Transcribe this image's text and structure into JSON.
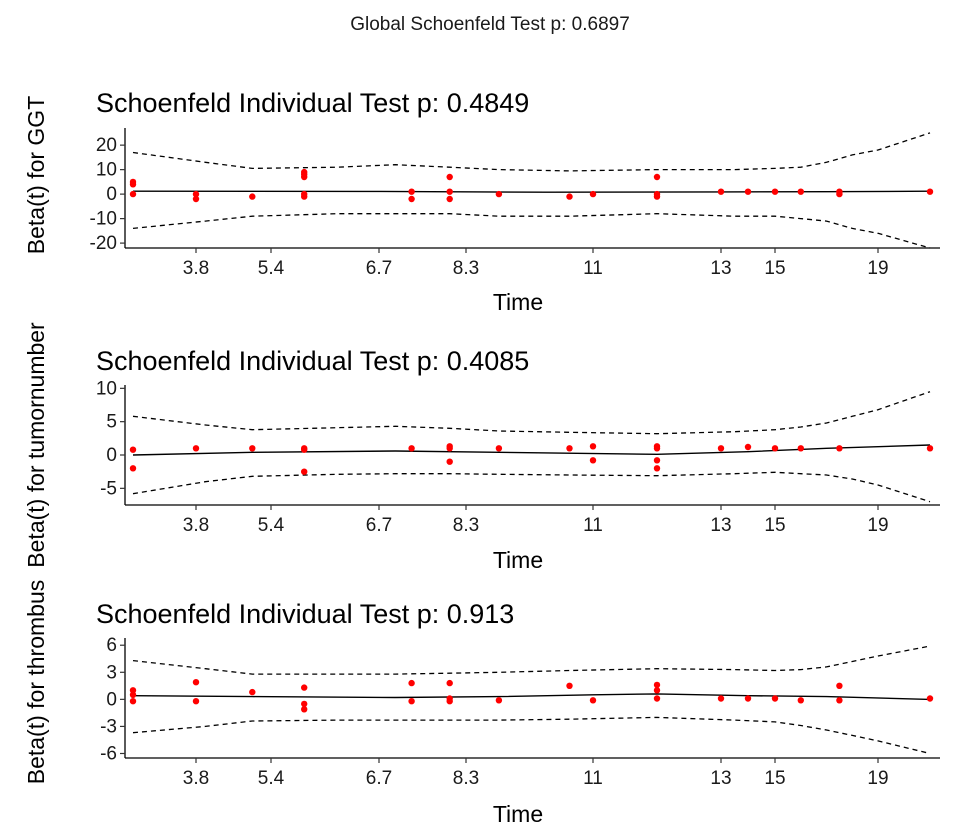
{
  "figure": {
    "global_title": "Global Schoenfeld Test p: 0.6897"
  },
  "style": {
    "point_color": "#ff0000",
    "line_color": "#000000",
    "band_color": "#000000"
  },
  "chart_data": [
    {
      "type": "scatter",
      "title": "Schoenfeld Individual Test p: 0.4849",
      "xlabel": "Time",
      "ylabel": "Beta(t) for GGT",
      "x_ticks": [
        "3.8",
        "5.4",
        "6.7",
        "8.3",
        "11",
        "13",
        "15",
        "19"
      ],
      "y_ticks": [
        20,
        10,
        0,
        -10,
        -20
      ],
      "ylim": [
        -22,
        27
      ],
      "grid": false,
      "points": [
        {
          "x": 3.2,
          "y": 5
        },
        {
          "x": 3.2,
          "y": 4
        },
        {
          "x": 3.2,
          "y": 0
        },
        {
          "x": 3.8,
          "y": 0
        },
        {
          "x": 3.8,
          "y": -2
        },
        {
          "x": 5.0,
          "y": -1
        },
        {
          "x": 5.8,
          "y": 9
        },
        {
          "x": 5.8,
          "y": 8
        },
        {
          "x": 5.8,
          "y": 7
        },
        {
          "x": 5.8,
          "y": 0
        },
        {
          "x": 5.8,
          "y": -1
        },
        {
          "x": 7.3,
          "y": 1
        },
        {
          "x": 7.3,
          "y": -2
        },
        {
          "x": 8.0,
          "y": 7
        },
        {
          "x": 8.0,
          "y": 1
        },
        {
          "x": 8.0,
          "y": -2
        },
        {
          "x": 9.0,
          "y": 0
        },
        {
          "x": 10.5,
          "y": -1
        },
        {
          "x": 11.0,
          "y": 0
        },
        {
          "x": 12.0,
          "y": 7
        },
        {
          "x": 12.0,
          "y": 0
        },
        {
          "x": 12.0,
          "y": -1
        },
        {
          "x": 13.0,
          "y": 1
        },
        {
          "x": 14.0,
          "y": 1
        },
        {
          "x": 15.0,
          "y": 1
        },
        {
          "x": 16.0,
          "y": 1
        },
        {
          "x": 17.5,
          "y": 1
        },
        {
          "x": 17.5,
          "y": 0
        },
        {
          "x": 21.0,
          "y": 1
        }
      ],
      "fit": [
        {
          "x": 3.2,
          "y": 1.2
        },
        {
          "x": 6.5,
          "y": 1.1
        },
        {
          "x": 10.0,
          "y": 0.8
        },
        {
          "x": 13.0,
          "y": 0.9
        },
        {
          "x": 17.0,
          "y": 1.0
        },
        {
          "x": 21.0,
          "y": 1.2
        }
      ],
      "band_upper": [
        {
          "x": 3.2,
          "y": 17
        },
        {
          "x": 4.0,
          "y": 13
        },
        {
          "x": 5.0,
          "y": 10.5
        },
        {
          "x": 6.2,
          "y": 11
        },
        {
          "x": 7.0,
          "y": 12
        },
        {
          "x": 8.0,
          "y": 11
        },
        {
          "x": 9.0,
          "y": 10
        },
        {
          "x": 10.5,
          "y": 9.5
        },
        {
          "x": 12.0,
          "y": 10
        },
        {
          "x": 13.5,
          "y": 10
        },
        {
          "x": 15.0,
          "y": 10.5
        },
        {
          "x": 16.0,
          "y": 11
        },
        {
          "x": 17.0,
          "y": 13
        },
        {
          "x": 18.0,
          "y": 16
        },
        {
          "x": 19.0,
          "y": 18
        },
        {
          "x": 21.0,
          "y": 25
        }
      ],
      "band_lower": [
        {
          "x": 3.2,
          "y": -14
        },
        {
          "x": 4.0,
          "y": -11
        },
        {
          "x": 5.0,
          "y": -9
        },
        {
          "x": 6.2,
          "y": -8
        },
        {
          "x": 7.0,
          "y": -8
        },
        {
          "x": 8.0,
          "y": -8
        },
        {
          "x": 9.0,
          "y": -9
        },
        {
          "x": 10.5,
          "y": -9
        },
        {
          "x": 12.0,
          "y": -8
        },
        {
          "x": 13.5,
          "y": -9
        },
        {
          "x": 15.0,
          "y": -9
        },
        {
          "x": 16.0,
          "y": -10
        },
        {
          "x": 17.0,
          "y": -11
        },
        {
          "x": 18.0,
          "y": -14
        },
        {
          "x": 19.0,
          "y": -16
        },
        {
          "x": 21.0,
          "y": -22
        }
      ]
    },
    {
      "type": "scatter",
      "title": "Schoenfeld Individual Test p: 0.4085",
      "xlabel": "Time",
      "ylabel": "Beta(t) for tumornumber",
      "x_ticks": [
        "3.8",
        "5.4",
        "6.7",
        "8.3",
        "11",
        "13",
        "15",
        "19"
      ],
      "y_ticks": [
        10,
        5,
        0,
        -5
      ],
      "ylim": [
        -7.5,
        10.5
      ],
      "grid": false,
      "points": [
        {
          "x": 3.2,
          "y": 0.8
        },
        {
          "x": 3.2,
          "y": -2
        },
        {
          "x": 3.8,
          "y": 1
        },
        {
          "x": 5.0,
          "y": 1
        },
        {
          "x": 5.8,
          "y": 1
        },
        {
          "x": 5.8,
          "y": 0.8
        },
        {
          "x": 5.8,
          "y": -2.5
        },
        {
          "x": 7.3,
          "y": 1
        },
        {
          "x": 8.0,
          "y": 1.3
        },
        {
          "x": 8.0,
          "y": 1
        },
        {
          "x": 8.0,
          "y": -1
        },
        {
          "x": 9.0,
          "y": 1
        },
        {
          "x": 10.5,
          "y": 1
        },
        {
          "x": 11.0,
          "y": 1.3
        },
        {
          "x": 11.0,
          "y": -0.8
        },
        {
          "x": 12.0,
          "y": 1.3
        },
        {
          "x": 12.0,
          "y": 1
        },
        {
          "x": 12.0,
          "y": -0.8
        },
        {
          "x": 12.0,
          "y": -2
        },
        {
          "x": 13.0,
          "y": 1
        },
        {
          "x": 14.0,
          "y": 1.2
        },
        {
          "x": 15.0,
          "y": 1
        },
        {
          "x": 16.0,
          "y": 1
        },
        {
          "x": 17.5,
          "y": 1
        },
        {
          "x": 21.0,
          "y": 1
        }
      ],
      "fit": [
        {
          "x": 3.2,
          "y": 0.0
        },
        {
          "x": 5.0,
          "y": 0.4
        },
        {
          "x": 7.0,
          "y": 0.6
        },
        {
          "x": 9.0,
          "y": 0.4
        },
        {
          "x": 12.0,
          "y": 0.1
        },
        {
          "x": 14.0,
          "y": 0.5
        },
        {
          "x": 17.0,
          "y": 1.0
        },
        {
          "x": 21.0,
          "y": 1.5
        }
      ],
      "band_upper": [
        {
          "x": 3.2,
          "y": 5.8
        },
        {
          "x": 4.0,
          "y": 4.5
        },
        {
          "x": 5.0,
          "y": 3.8
        },
        {
          "x": 6.2,
          "y": 4.1
        },
        {
          "x": 7.0,
          "y": 4.3
        },
        {
          "x": 8.0,
          "y": 4.0
        },
        {
          "x": 9.0,
          "y": 3.6
        },
        {
          "x": 10.5,
          "y": 3.4
        },
        {
          "x": 12.0,
          "y": 3.2
        },
        {
          "x": 13.5,
          "y": 3.5
        },
        {
          "x": 15.0,
          "y": 3.8
        },
        {
          "x": 16.0,
          "y": 4.2
        },
        {
          "x": 17.0,
          "y": 4.8
        },
        {
          "x": 18.0,
          "y": 5.8
        },
        {
          "x": 19.0,
          "y": 6.8
        },
        {
          "x": 21.0,
          "y": 9.5
        }
      ],
      "band_lower": [
        {
          "x": 3.2,
          "y": -5.8
        },
        {
          "x": 4.0,
          "y": -4.0
        },
        {
          "x": 5.0,
          "y": -3.2
        },
        {
          "x": 6.2,
          "y": -2.9
        },
        {
          "x": 7.0,
          "y": -2.8
        },
        {
          "x": 8.0,
          "y": -2.8
        },
        {
          "x": 9.0,
          "y": -2.9
        },
        {
          "x": 10.5,
          "y": -3.0
        },
        {
          "x": 12.0,
          "y": -3.1
        },
        {
          "x": 13.5,
          "y": -2.8
        },
        {
          "x": 15.0,
          "y": -2.6
        },
        {
          "x": 16.0,
          "y": -2.8
        },
        {
          "x": 17.0,
          "y": -3.0
        },
        {
          "x": 18.0,
          "y": -3.6
        },
        {
          "x": 19.0,
          "y": -4.5
        },
        {
          "x": 21.0,
          "y": -7.0
        }
      ]
    },
    {
      "type": "scatter",
      "title": "Schoenfeld Individual Test p: 0.913",
      "xlabel": "Time",
      "ylabel": "Beta(t) for thrombus",
      "x_ticks": [
        "3.8",
        "5.4",
        "6.7",
        "8.3",
        "11",
        "13",
        "15",
        "19"
      ],
      "y_ticks": [
        6,
        3,
        0,
        -3,
        -6
      ],
      "ylim": [
        -6.5,
        6.8
      ],
      "grid": false,
      "points": [
        {
          "x": 3.2,
          "y": 1.0
        },
        {
          "x": 3.2,
          "y": 0.5
        },
        {
          "x": 3.2,
          "y": -0.2
        },
        {
          "x": 3.8,
          "y": 1.9
        },
        {
          "x": 3.8,
          "y": -0.2
        },
        {
          "x": 5.0,
          "y": 0.8
        },
        {
          "x": 5.8,
          "y": 1.3
        },
        {
          "x": 5.8,
          "y": -0.5
        },
        {
          "x": 5.8,
          "y": -1.1
        },
        {
          "x": 7.3,
          "y": 1.8
        },
        {
          "x": 7.3,
          "y": -0.2
        },
        {
          "x": 8.0,
          "y": 1.8
        },
        {
          "x": 8.0,
          "y": 0.1
        },
        {
          "x": 8.0,
          "y": -0.2
        },
        {
          "x": 9.0,
          "y": -0.1
        },
        {
          "x": 10.5,
          "y": 1.5
        },
        {
          "x": 11.0,
          "y": -0.1
        },
        {
          "x": 12.0,
          "y": 1.6
        },
        {
          "x": 12.0,
          "y": 1.0
        },
        {
          "x": 12.0,
          "y": 0.1
        },
        {
          "x": 13.0,
          "y": 0.1
        },
        {
          "x": 14.0,
          "y": 0.1
        },
        {
          "x": 15.0,
          "y": 0.1
        },
        {
          "x": 16.0,
          "y": -0.1
        },
        {
          "x": 17.5,
          "y": 1.5
        },
        {
          "x": 17.5,
          "y": -0.1
        },
        {
          "x": 21.0,
          "y": 0.1
        }
      ],
      "fit": [
        {
          "x": 3.2,
          "y": 0.4
        },
        {
          "x": 5.0,
          "y": 0.3
        },
        {
          "x": 7.0,
          "y": 0.2
        },
        {
          "x": 9.0,
          "y": 0.3
        },
        {
          "x": 11.0,
          "y": 0.5
        },
        {
          "x": 12.0,
          "y": 0.6
        },
        {
          "x": 14.0,
          "y": 0.4
        },
        {
          "x": 17.0,
          "y": 0.3
        },
        {
          "x": 21.0,
          "y": 0.0
        }
      ],
      "band_upper": [
        {
          "x": 3.2,
          "y": 4.3
        },
        {
          "x": 4.0,
          "y": 3.4
        },
        {
          "x": 5.0,
          "y": 2.8
        },
        {
          "x": 6.2,
          "y": 2.8
        },
        {
          "x": 7.0,
          "y": 2.8
        },
        {
          "x": 8.0,
          "y": 2.9
        },
        {
          "x": 9.0,
          "y": 3.0
        },
        {
          "x": 10.5,
          "y": 3.2
        },
        {
          "x": 12.0,
          "y": 3.4
        },
        {
          "x": 13.5,
          "y": 3.3
        },
        {
          "x": 15.0,
          "y": 3.2
        },
        {
          "x": 16.0,
          "y": 3.3
        },
        {
          "x": 17.0,
          "y": 3.6
        },
        {
          "x": 18.0,
          "y": 4.2
        },
        {
          "x": 19.0,
          "y": 4.8
        },
        {
          "x": 21.0,
          "y": 5.9
        }
      ],
      "band_lower": [
        {
          "x": 3.2,
          "y": -3.7
        },
        {
          "x": 4.0,
          "y": -3.0
        },
        {
          "x": 5.0,
          "y": -2.4
        },
        {
          "x": 6.2,
          "y": -2.3
        },
        {
          "x": 7.0,
          "y": -2.3
        },
        {
          "x": 8.0,
          "y": -2.3
        },
        {
          "x": 9.0,
          "y": -2.3
        },
        {
          "x": 10.5,
          "y": -2.2
        },
        {
          "x": 12.0,
          "y": -2.0
        },
        {
          "x": 13.5,
          "y": -2.3
        },
        {
          "x": 15.0,
          "y": -2.5
        },
        {
          "x": 16.0,
          "y": -2.9
        },
        {
          "x": 17.0,
          "y": -3.4
        },
        {
          "x": 18.0,
          "y": -4.0
        },
        {
          "x": 19.0,
          "y": -4.6
        },
        {
          "x": 21.0,
          "y": -6.0
        }
      ]
    }
  ]
}
